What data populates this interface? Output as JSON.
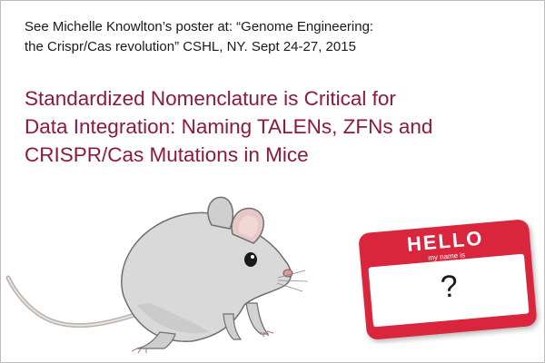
{
  "intro": {
    "line1": "See Michelle Knowlton’s poster at: “Genome Engineering:",
    "line2": "the Crispr/Cas revolution” CSHL, NY. Sept 24-27, 2015"
  },
  "title": {
    "line1": "Standardized Nomenclature is Critical for",
    "line2": "Data Integration: Naming TALENs, ZFNs and",
    "line3": "CRISPR/Cas Mutations in Mice"
  },
  "name_tag": {
    "header": "HELLO",
    "subheader": "my name is",
    "name": "?"
  },
  "colors": {
    "title": "#8c1a3c",
    "tag_red": "#d9263d",
    "mouse_fur": "#d6d6d6"
  },
  "icons": {
    "mouse": "mouse-illustration",
    "tag": "name-tag-sticker"
  }
}
